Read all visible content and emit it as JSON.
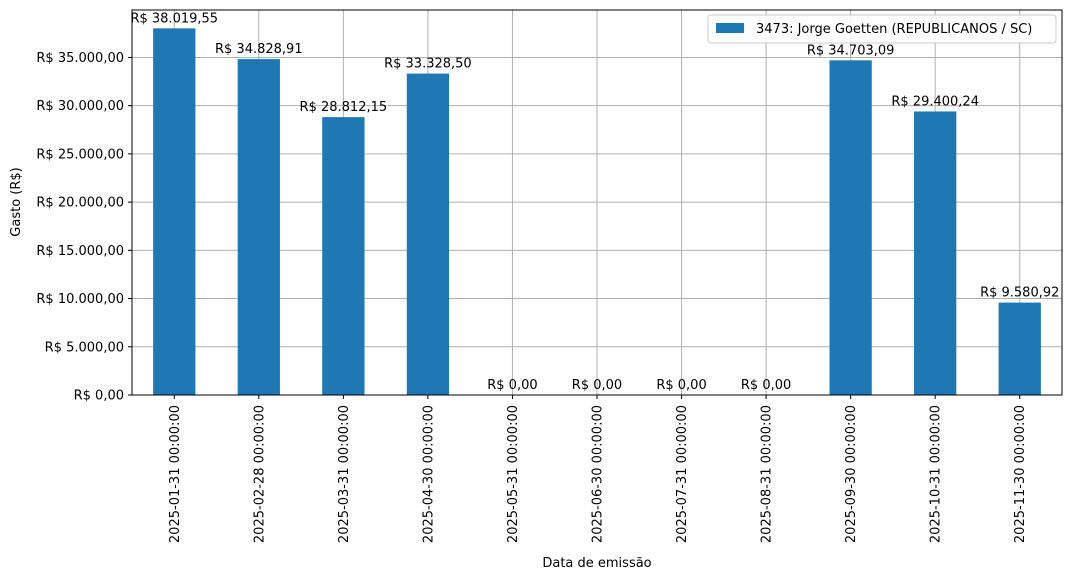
{
  "chart_data": {
    "type": "bar",
    "title": "",
    "xlabel": "Data de emissão",
    "ylabel": "Gasto (R$)",
    "ylim": [
      0,
      39921
    ],
    "grid": true,
    "legend_position": "top-right",
    "categories": [
      "2025-01-31 00:00:00",
      "2025-02-28 00:00:00",
      "2025-03-31 00:00:00",
      "2025-04-30 00:00:00",
      "2025-05-31 00:00:00",
      "2025-06-30 00:00:00",
      "2025-07-31 00:00:00",
      "2025-08-31 00:00:00",
      "2025-09-30 00:00:00",
      "2025-10-31 00:00:00",
      "2025-11-30 00:00:00"
    ],
    "series": [
      {
        "name": "3473: Jorge Goetten (REPUBLICANOS / SC)",
        "color": "#1f77b4",
        "values": [
          38019.55,
          34828.91,
          28812.15,
          33328.5,
          0,
          0,
          0,
          0,
          34703.09,
          29400.24,
          9580.92
        ],
        "data_labels": [
          "R$ 38.019,55",
          "R$ 34.828,91",
          "R$ 28.812,15",
          "R$ 33.328,50",
          "R$ 0,00",
          "R$ 0,00",
          "R$ 0,00",
          "R$ 0,00",
          "R$ 34.703,09",
          "R$ 29.400,24",
          "R$ 9.580,92"
        ]
      }
    ],
    "y_ticks": [
      {
        "value": 0,
        "label": "R$ 0,00"
      },
      {
        "value": 5000,
        "label": "R$ 5.000,00"
      },
      {
        "value": 10000,
        "label": "R$ 10.000,00"
      },
      {
        "value": 15000,
        "label": "R$ 15.000,00"
      },
      {
        "value": 20000,
        "label": "R$ 20.000,00"
      },
      {
        "value": 25000,
        "label": "R$ 25.000,00"
      },
      {
        "value": 30000,
        "label": "R$ 30.000,00"
      },
      {
        "value": 35000,
        "label": "R$ 35.000,00"
      }
    ],
    "colors": {
      "grid": "#b0b0b0",
      "axis": "#000000",
      "legend_border": "#cccccc"
    }
  }
}
